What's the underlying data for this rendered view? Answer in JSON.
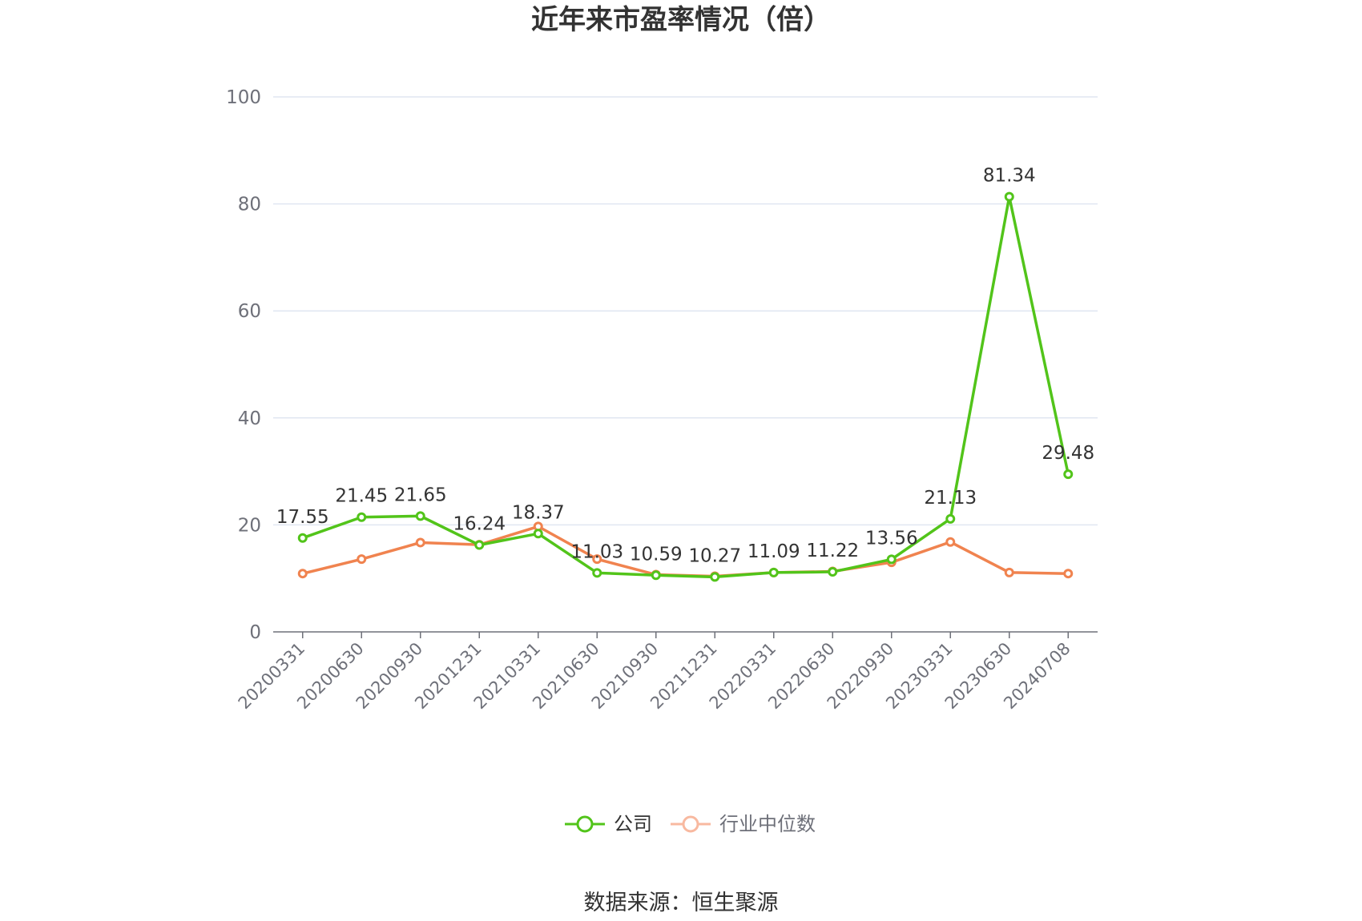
{
  "chart_data": {
    "type": "line",
    "title": "近年来市盈率情况（倍）",
    "source": "数据来源：恒生聚源",
    "xlabel": "",
    "ylabel": "",
    "ylim": [
      0,
      100
    ],
    "yticks": [
      0,
      20,
      40,
      60,
      80,
      100
    ],
    "grid": true,
    "legend_position": "bottom-center",
    "categories": [
      "20200331",
      "20200630",
      "20200930",
      "20201231",
      "20210331",
      "20210630",
      "20210930",
      "20211231",
      "20220331",
      "20220630",
      "20220930",
      "20230331",
      "20230630",
      "20240708"
    ],
    "series": [
      {
        "name": "公司",
        "color": "#52c41a",
        "values": [
          17.55,
          21.45,
          21.65,
          16.24,
          18.37,
          11.03,
          10.59,
          10.27,
          11.09,
          11.22,
          13.56,
          21.13,
          81.34,
          29.48
        ],
        "labels": [
          "17.55",
          "21.45",
          "21.65",
          "16.24",
          "18.37",
          "11.03",
          "10.59",
          "10.27",
          "11.09",
          "11.22",
          "13.56",
          "21.13",
          "81.34",
          "29.48"
        ]
      },
      {
        "name": "行业中位数",
        "color": "#f0834f",
        "legend_color": "#f8b9a0",
        "values": [
          10.9,
          13.6,
          16.7,
          16.3,
          19.7,
          13.6,
          10.7,
          10.4,
          11.1,
          11.3,
          13.0,
          16.8,
          11.1,
          10.9
        ]
      }
    ]
  }
}
